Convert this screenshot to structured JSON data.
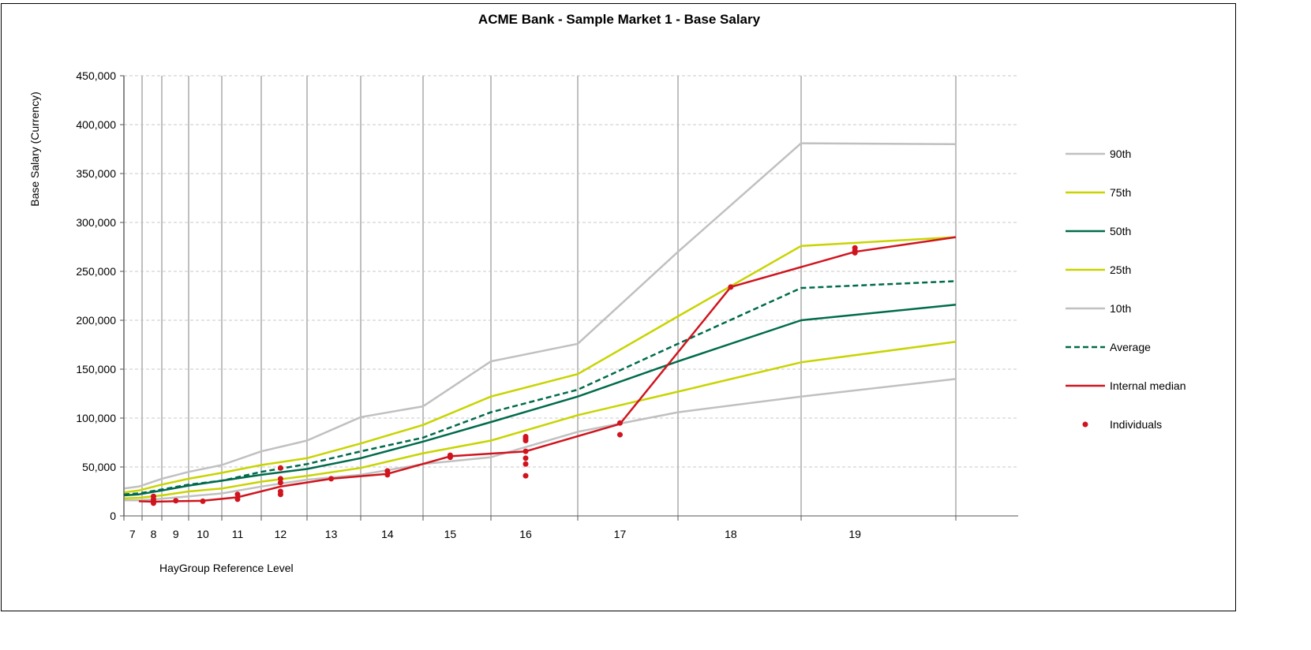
{
  "chart_data": {
    "type": "line",
    "title": "ACME Bank - Sample Market 1 - Base Salary",
    "xlabel": "HayGroup Reference Level",
    "ylabel": "Base Salary (Currency)",
    "ylim": [
      0,
      450000
    ],
    "y_ticks": [
      0,
      50000,
      100000,
      150000,
      200000,
      250000,
      300000,
      350000,
      400000,
      450000
    ],
    "y_tick_labels": [
      "0",
      "50,000",
      "100,000",
      "150,000",
      "200,000",
      "250,000",
      "300,000",
      "350,000",
      "400,000",
      "450,000"
    ],
    "x_tick_labels": [
      "7",
      "8",
      "9",
      "10",
      "11",
      "12",
      "13",
      "14",
      "15",
      "16",
      "17",
      "18",
      "19"
    ],
    "x_label_values": [
      7,
      8,
      9,
      10,
      11,
      12,
      13,
      14,
      15,
      16,
      17,
      18,
      19
    ],
    "vertical_gridlines": [
      6.6,
      7.45,
      8.4,
      9.55,
      10.6,
      11.6,
      12.55,
      13.55,
      14.6,
      15.6,
      16.6,
      17.55,
      18.6,
      19.75
    ],
    "tick_marks": [
      6.6,
      7.45,
      8.4,
      9.55,
      10.6,
      11.6,
      12.55,
      13.55,
      14.6,
      15.6,
      16.6,
      17.55,
      18.6,
      19.75
    ],
    "grid": true,
    "legend_position": "right",
    "series": [
      {
        "name": "90th",
        "color": "#c0c0c0",
        "dash": "solid",
        "x": [
          6.6,
          7.3,
          8.4,
          9.55,
          10.6,
          11.6,
          12.55,
          13.55,
          14.6,
          15.6,
          16.6,
          17.55,
          18.6,
          19.75
        ],
        "y": [
          28000,
          30000,
          38000,
          45000,
          52000,
          66000,
          77000,
          101000,
          112000,
          158000,
          176000,
          270000,
          381000,
          380000
        ]
      },
      {
        "name": "75th",
        "color": "#c8d400",
        "dash": "solid",
        "x": [
          6.6,
          7.3,
          8.4,
          9.55,
          10.6,
          11.6,
          12.55,
          13.55,
          14.6,
          15.6,
          16.6,
          17.55,
          18.6,
          19.75
        ],
        "y": [
          24000,
          26000,
          32000,
          38000,
          44000,
          52000,
          59000,
          74000,
          93000,
          122000,
          145000,
          204000,
          276000,
          285000
        ]
      },
      {
        "name": "50th",
        "color": "#006b4c",
        "dash": "solid",
        "x": [
          6.6,
          7.3,
          8.4,
          9.55,
          10.6,
          11.6,
          12.55,
          13.55,
          14.6,
          15.6,
          16.6,
          17.55,
          18.6,
          19.75
        ],
        "y": [
          21000,
          22000,
          26000,
          31000,
          36000,
          42000,
          48000,
          59000,
          76000,
          96000,
          122000,
          158000,
          200000,
          216000
        ]
      },
      {
        "name": "25th",
        "color": "#c8d400",
        "dash": "solid",
        "x": [
          6.6,
          7.3,
          8.4,
          9.55,
          10.6,
          11.6,
          12.55,
          13.55,
          14.6,
          15.6,
          16.6,
          17.55,
          18.6,
          19.75
        ],
        "y": [
          18000,
          18500,
          21000,
          25000,
          28000,
          35000,
          41000,
          49000,
          64000,
          77000,
          103000,
          127000,
          157000,
          178000
        ]
      },
      {
        "name": "10th",
        "color": "#c0c0c0",
        "dash": "solid",
        "x": [
          6.6,
          7.3,
          8.4,
          9.55,
          10.6,
          11.6,
          12.55,
          13.55,
          14.6,
          15.6,
          16.6,
          17.55,
          18.6,
          19.75
        ],
        "y": [
          16000,
          16000,
          17500,
          20000,
          23000,
          30000,
          37000,
          42000,
          53000,
          60000,
          86000,
          106000,
          122000,
          140000
        ]
      },
      {
        "name": "Average",
        "color": "#006b4c",
        "dash": "dashed",
        "x": [
          6.6,
          7.3,
          8.4,
          9.55,
          10.6,
          11.6,
          12.55,
          13.55,
          14.6,
          15.6,
          16.6,
          17.55,
          18.6,
          19.75
        ],
        "y": [
          22000,
          23000,
          27000,
          32000,
          36000,
          45000,
          53000,
          66000,
          80000,
          106000,
          129000,
          176000,
          233000,
          240000
        ]
      },
      {
        "name": "Internal median",
        "color": "#d0141e",
        "dash": "solid",
        "x": [
          7.3,
          8,
          9,
          10,
          11,
          12,
          13,
          14,
          15,
          16,
          17,
          18,
          19,
          19.75
        ],
        "y": [
          15000,
          14500,
          15000,
          15500,
          19000,
          30000,
          38000,
          43000,
          61000,
          66000,
          94000,
          234000,
          270000,
          285000
        ]
      }
    ],
    "individuals": {
      "name": "Individuals",
      "color": "#d0141e",
      "points": [
        [
          8,
          13000
        ],
        [
          8,
          15000
        ],
        [
          8,
          17000
        ],
        [
          8,
          20000
        ],
        [
          9,
          15500
        ],
        [
          10,
          15000
        ],
        [
          11,
          17000
        ],
        [
          11,
          22000
        ],
        [
          12,
          22000
        ],
        [
          12,
          25000
        ],
        [
          12,
          34000
        ],
        [
          12,
          38000
        ],
        [
          12,
          49000
        ],
        [
          13,
          38000
        ],
        [
          14,
          42000
        ],
        [
          14,
          46000
        ],
        [
          15,
          60000
        ],
        [
          15,
          62000
        ],
        [
          16,
          41000
        ],
        [
          16,
          53000
        ],
        [
          16,
          59000
        ],
        [
          16,
          66000
        ],
        [
          16,
          77000
        ],
        [
          16,
          79000
        ],
        [
          16,
          81000
        ],
        [
          17,
          83000
        ],
        [
          17,
          95000
        ],
        [
          18,
          234000
        ],
        [
          19,
          269000
        ],
        [
          19,
          271000
        ],
        [
          19,
          274000
        ]
      ]
    }
  }
}
